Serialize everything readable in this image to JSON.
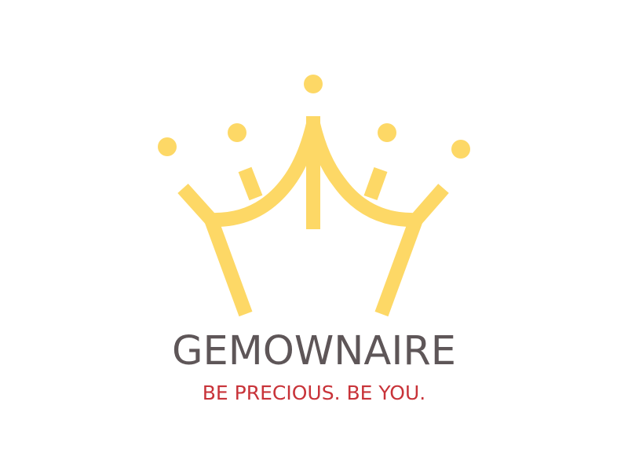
{
  "logo": {
    "brand_name": "GEMOWNAIRE",
    "tagline": "BE PRECIOUS. BE YOU.",
    "icon": "crown-icon",
    "colors": {
      "crown": "#fdd866",
      "brand_name": "#5e5658",
      "tagline": "#c83339",
      "background": "#ffffff"
    }
  }
}
